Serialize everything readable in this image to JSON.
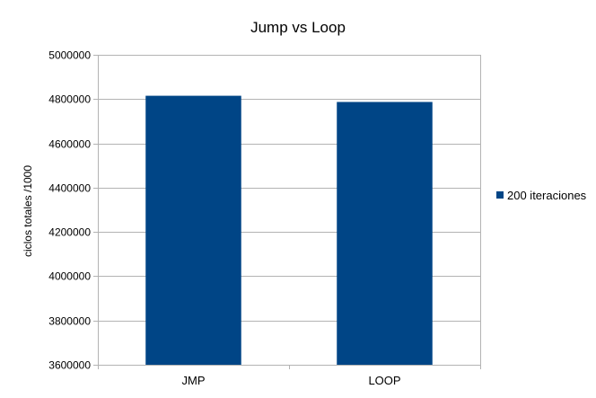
{
  "chart_data": {
    "type": "bar",
    "title": "Jump vs Loop",
    "xlabel": "",
    "ylabel": "ciclos totales /1000",
    "categories": [
      "JMP",
      "LOOP"
    ],
    "series": [
      {
        "name": "200 iteraciones",
        "values": [
          4815000,
          4787000
        ],
        "color": "#004586"
      }
    ],
    "ylim": [
      3600000,
      5000000
    ],
    "yticks": [
      3600000,
      3800000,
      4000000,
      4200000,
      4400000,
      4600000,
      4800000,
      5000000
    ],
    "ytick_labels": [
      "3600000",
      "3800000",
      "4000000",
      "4200000",
      "4400000",
      "4600000",
      "4800000",
      "5000000"
    ],
    "grid": true,
    "legend_position": "right"
  }
}
